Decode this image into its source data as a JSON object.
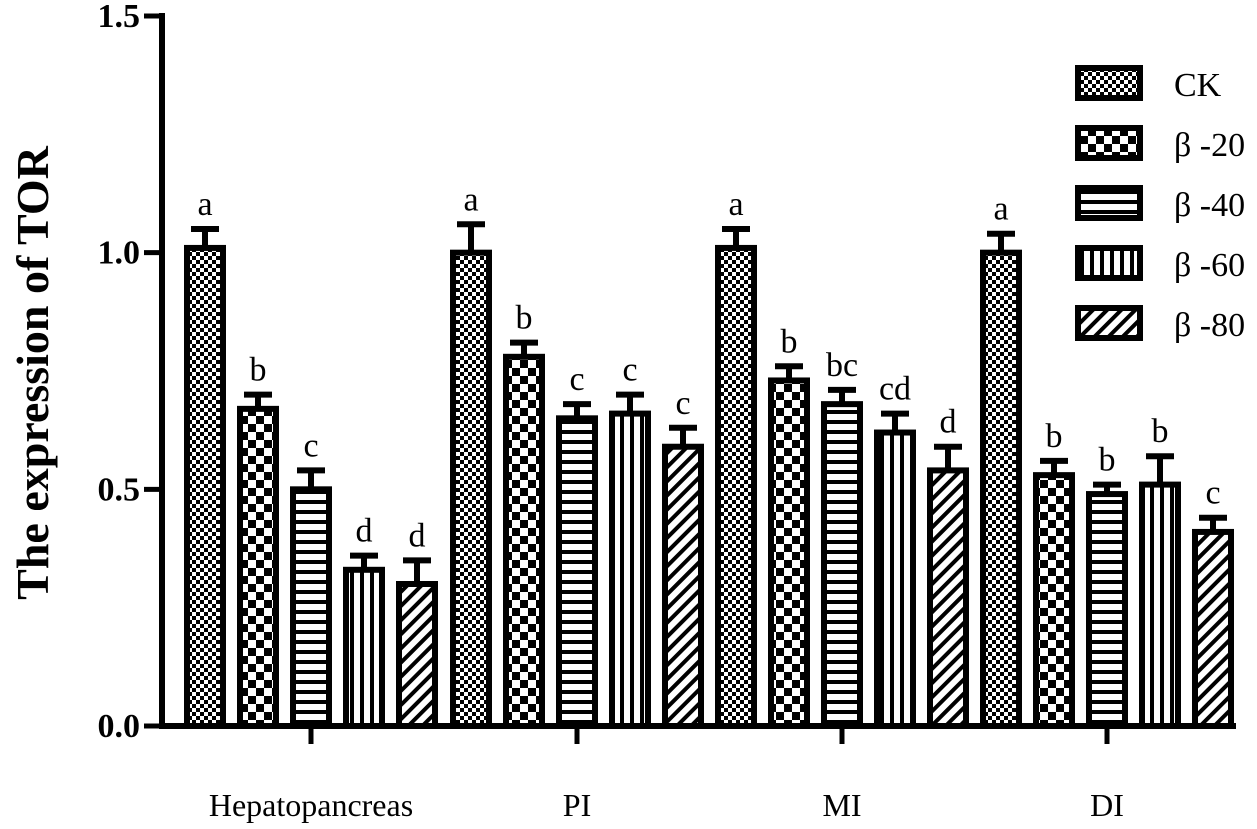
{
  "chart_data": {
    "type": "bar",
    "title": "",
    "ylabel": "The expression of TOR",
    "xlabel": "",
    "ylim": [
      0,
      1.5
    ],
    "yticks": [
      {
        "value": 0.0,
        "label": "0.0"
      },
      {
        "value": 0.5,
        "label": "0.5"
      },
      {
        "value": 1.0,
        "label": "1.0"
      },
      {
        "value": 1.5,
        "label": "1.5"
      }
    ],
    "categories": [
      "Hepatopancreas",
      "PI",
      "MI",
      "DI"
    ],
    "legend_position": "top-right",
    "grid": false,
    "series": [
      {
        "name": "CK",
        "pattern": "checker-fine",
        "values": [
          1.01,
          1.0,
          1.01,
          1.0
        ],
        "errors": [
          0.04,
          0.06,
          0.04,
          0.04
        ],
        "labels": [
          "a",
          "a",
          "a",
          "a"
        ]
      },
      {
        "name": "β -20",
        "pattern": "checker-coarse",
        "values": [
          0.67,
          0.78,
          0.73,
          0.53
        ],
        "errors": [
          0.03,
          0.03,
          0.03,
          0.03
        ],
        "labels": [
          "b",
          "b",
          "b",
          "b"
        ]
      },
      {
        "name": "β -40",
        "pattern": "horizontal",
        "values": [
          0.5,
          0.65,
          0.68,
          0.49
        ],
        "errors": [
          0.04,
          0.03,
          0.03,
          0.02
        ],
        "labels": [
          "c",
          "c",
          "bc",
          "b"
        ]
      },
      {
        "name": "β -60",
        "pattern": "vertical",
        "values": [
          0.33,
          0.66,
          0.62,
          0.51
        ],
        "errors": [
          0.03,
          0.04,
          0.04,
          0.06
        ],
        "labels": [
          "d",
          "c",
          "cd",
          "b"
        ]
      },
      {
        "name": "β -80",
        "pattern": "diagonal",
        "values": [
          0.3,
          0.59,
          0.54,
          0.41
        ],
        "errors": [
          0.05,
          0.04,
          0.05,
          0.03
        ],
        "labels": [
          "d",
          "c",
          "d",
          "c"
        ]
      }
    ]
  }
}
